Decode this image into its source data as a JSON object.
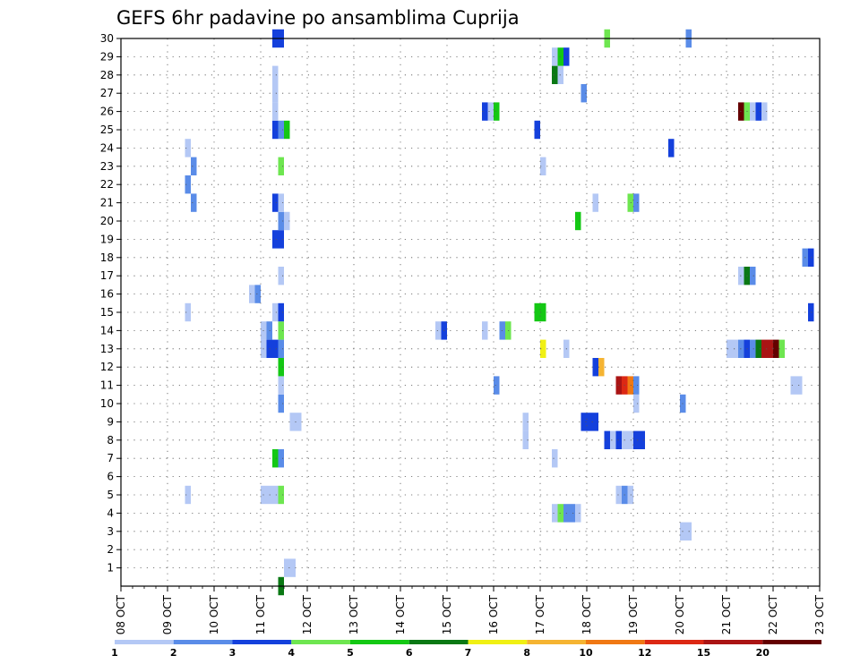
{
  "chart_data": {
    "type": "heatmap",
    "title": "GEFS 6hr padavine po ansamblima Cuprija",
    "xlabel": "",
    "ylabel": "",
    "x_ticks": [
      "08 OCT",
      "09 OCT",
      "10 OCT",
      "11 OCT",
      "12 OCT",
      "13 OCT",
      "14 OCT",
      "15 OCT",
      "16 OCT",
      "17 OCT",
      "18 OCT",
      "19 OCT",
      "20 OCT",
      "21 OCT",
      "22 OCT",
      "23 OCT"
    ],
    "y_ticks": [
      1,
      2,
      3,
      4,
      5,
      6,
      7,
      8,
      9,
      10,
      11,
      12,
      13,
      14,
      15,
      16,
      17,
      18,
      19,
      20,
      21,
      22,
      23,
      24,
      25,
      26,
      27,
      28,
      29,
      30
    ],
    "x_unit": "6-hour step index from 08 OCT 00Z (4 steps per day)",
    "xlim": [
      0,
      60
    ],
    "ylim": [
      0,
      30
    ],
    "grid": true,
    "colorbar": {
      "labels": [
        "1",
        "2",
        "3",
        "4",
        "5",
        "6",
        "7",
        "8",
        "10",
        "12",
        "15",
        "20"
      ],
      "colors": [
        "#b4c8f5",
        "#5a8ce8",
        "#1440dc",
        "#6ee650",
        "#14c814",
        "#0a7814",
        "#f0f014",
        "#f5b432",
        "#f07814",
        "#dc2814",
        "#aa1414",
        "#640000"
      ]
    },
    "points": [
      {
        "m": 0,
        "t": [
          [
            14,
            6
          ]
        ]
      },
      {
        "m": 1,
        "t": [
          [
            14.5,
            1
          ],
          [
            15,
            1
          ]
        ]
      },
      {
        "m": 3,
        "t": [
          [
            48.5,
            1
          ],
          [
            49,
            1
          ]
        ]
      },
      {
        "m": 4,
        "t": [
          [
            37.5,
            1
          ],
          [
            38,
            4
          ],
          [
            38.5,
            2
          ],
          [
            39,
            2
          ],
          [
            39.5,
            1
          ]
        ]
      },
      {
        "m": 5,
        "t": [
          [
            6,
            1
          ],
          [
            12.5,
            1
          ],
          [
            13,
            1
          ],
          [
            13.5,
            1
          ],
          [
            14,
            4
          ],
          [
            43,
            1
          ],
          [
            43.5,
            2
          ],
          [
            44,
            1
          ]
        ]
      },
      {
        "m": 7,
        "t": [
          [
            13.5,
            5
          ],
          [
            14,
            2
          ],
          [
            37.5,
            1
          ]
        ]
      },
      {
        "m": 8,
        "t": [
          [
            35,
            1
          ],
          [
            42,
            3
          ],
          [
            42.5,
            1
          ],
          [
            43,
            3
          ],
          [
            43.5,
            1
          ],
          [
            44,
            1
          ],
          [
            44.5,
            3
          ],
          [
            45,
            3
          ]
        ]
      },
      {
        "m": 9,
        "t": [
          [
            15,
            1
          ],
          [
            15.5,
            1
          ],
          [
            35,
            1
          ],
          [
            40,
            3
          ],
          [
            40.5,
            3
          ],
          [
            41,
            3
          ]
        ]
      },
      {
        "m": 10,
        "t": [
          [
            14,
            2
          ],
          [
            44.5,
            1
          ],
          [
            48.5,
            2
          ]
        ]
      },
      {
        "m": 11,
        "t": [
          [
            14,
            1
          ],
          [
            32.5,
            2
          ],
          [
            43,
            11
          ],
          [
            43.5,
            10
          ],
          [
            44,
            9
          ],
          [
            44.5,
            2
          ],
          [
            58,
            1
          ],
          [
            58.5,
            1
          ]
        ]
      },
      {
        "m": 12,
        "t": [
          [
            14,
            5
          ],
          [
            41,
            3
          ],
          [
            41.5,
            8
          ]
        ]
      },
      {
        "m": 13,
        "t": [
          [
            12.5,
            1
          ],
          [
            13,
            3
          ],
          [
            13.5,
            3
          ],
          [
            14,
            2
          ],
          [
            36.5,
            7
          ],
          [
            38.5,
            1
          ],
          [
            52.5,
            1
          ],
          [
            53,
            1
          ],
          [
            53.5,
            2
          ],
          [
            54,
            3
          ],
          [
            54.5,
            2
          ],
          [
            55,
            6
          ],
          [
            55.5,
            11
          ],
          [
            56,
            11
          ],
          [
            56.5,
            12
          ],
          [
            57,
            4
          ]
        ]
      },
      {
        "m": 14,
        "t": [
          [
            12.5,
            1
          ],
          [
            13,
            2
          ],
          [
            14,
            4
          ],
          [
            27.5,
            1
          ],
          [
            28,
            3
          ],
          [
            31.5,
            1
          ],
          [
            33,
            2
          ],
          [
            33.5,
            4
          ]
        ]
      },
      {
        "m": 15,
        "t": [
          [
            6,
            1
          ],
          [
            13.5,
            1
          ],
          [
            14,
            3
          ],
          [
            36,
            5
          ],
          [
            36.5,
            5
          ],
          [
            59.5,
            3
          ]
        ]
      },
      {
        "m": 16,
        "t": [
          [
            11.5,
            1
          ],
          [
            12,
            2
          ]
        ]
      },
      {
        "m": 17,
        "t": [
          [
            14,
            1
          ],
          [
            53.5,
            1
          ],
          [
            54,
            6
          ],
          [
            54.5,
            2
          ]
        ]
      },
      {
        "m": 18,
        "t": [
          [
            59,
            2
          ],
          [
            59.5,
            3
          ]
        ]
      },
      {
        "m": 19,
        "t": [
          [
            13.5,
            3
          ],
          [
            14,
            3
          ]
        ]
      },
      {
        "m": 20,
        "t": [
          [
            14,
            2
          ],
          [
            14.5,
            1
          ],
          [
            39.5,
            5
          ]
        ]
      },
      {
        "m": 21,
        "t": [
          [
            6.5,
            2
          ],
          [
            13.5,
            3
          ],
          [
            14,
            1
          ],
          [
            41,
            1
          ],
          [
            44,
            4
          ],
          [
            44.5,
            2
          ]
        ]
      },
      {
        "m": 22,
        "t": [
          [
            6,
            2
          ]
        ]
      },
      {
        "m": 23,
        "t": [
          [
            6.5,
            2
          ],
          [
            14,
            4
          ],
          [
            36.5,
            1
          ]
        ]
      },
      {
        "m": 24,
        "t": [
          [
            6,
            1
          ],
          [
            47.5,
            3
          ]
        ]
      },
      {
        "m": 25,
        "t": [
          [
            13.5,
            3
          ],
          [
            14,
            2
          ],
          [
            14.5,
            5
          ],
          [
            36,
            3
          ]
        ]
      },
      {
        "m": 26,
        "t": [
          [
            13.5,
            1
          ],
          [
            31.5,
            3
          ],
          [
            32,
            1
          ],
          [
            32.5,
            5
          ],
          [
            53.5,
            12
          ],
          [
            54,
            4
          ],
          [
            54.5,
            1
          ],
          [
            55,
            3
          ],
          [
            55.5,
            1
          ]
        ]
      },
      {
        "m": 27,
        "t": [
          [
            13.5,
            1
          ],
          [
            40,
            2
          ]
        ]
      },
      {
        "m": 28,
        "t": [
          [
            13.5,
            1
          ],
          [
            37.5,
            6
          ],
          [
            38,
            1
          ]
        ]
      },
      {
        "m": 29,
        "t": [
          [
            37.5,
            1
          ],
          [
            38,
            5
          ],
          [
            38.5,
            3
          ]
        ]
      },
      {
        "m": 30,
        "t": [
          [
            13.5,
            3
          ],
          [
            14,
            3
          ],
          [
            42,
            4
          ],
          [
            49,
            2
          ]
        ]
      }
    ]
  }
}
